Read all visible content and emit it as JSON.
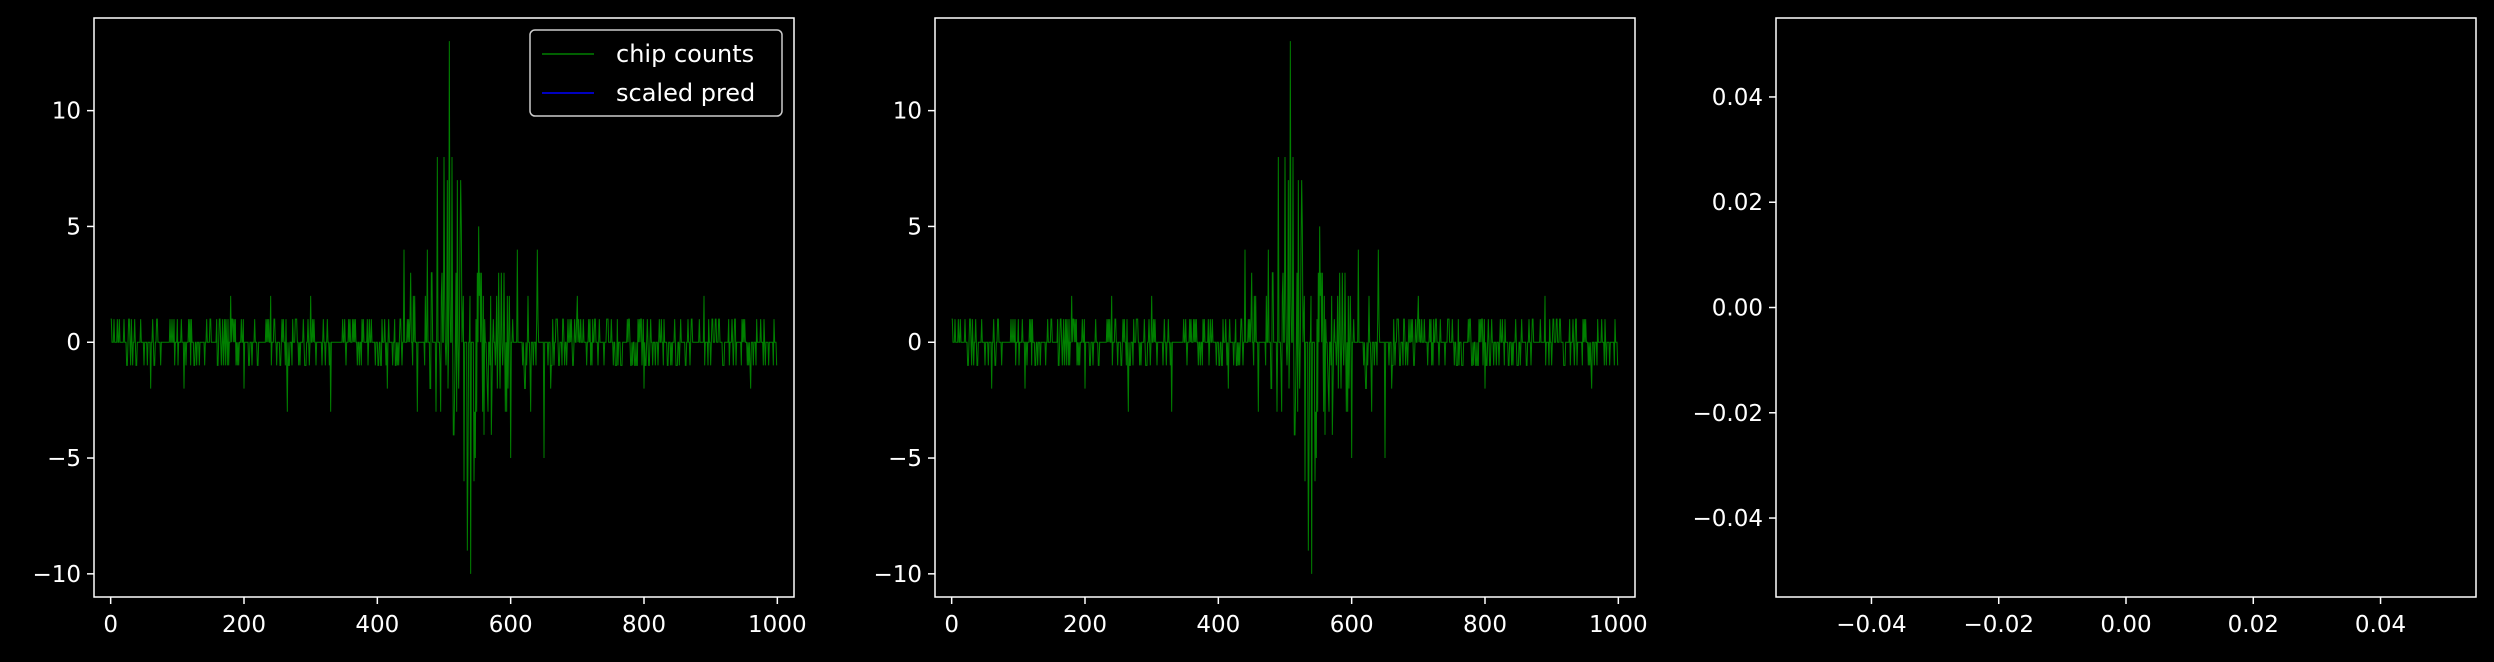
{
  "colors": {
    "background": "#000000",
    "axes_edge": "#ffffff",
    "text": "#ffffff",
    "series_chip_counts": "#008000",
    "series_scaled_pred": "#0000ff",
    "legend_face": "#000000",
    "legend_edge": "#cccccc"
  },
  "chart_data": [
    {
      "type": "line",
      "title": "",
      "xlabel": "",
      "ylabel": "",
      "xlim": [
        -25,
        1025
      ],
      "ylim": [
        -11,
        14
      ],
      "xticks": [
        0,
        200,
        400,
        600,
        800,
        1000
      ],
      "xtick_labels": [
        "0",
        "200",
        "400",
        "600",
        "800",
        "1000"
      ],
      "yticks": [
        -10,
        -5,
        0,
        5,
        10
      ],
      "ytick_labels": [
        "−10",
        "−5",
        "0",
        "5",
        "10"
      ],
      "grid": false,
      "legend": {
        "placement": "upper right",
        "entries": [
          {
            "label": "chip counts",
            "color": "#008000"
          },
          {
            "label": "scaled pred",
            "color": "#0000ff"
          }
        ]
      },
      "series": [
        {
          "name": "chip counts",
          "color": "#008000",
          "x_range": [
            0,
            999
          ],
          "baseline": 0,
          "description_values": {
            "outer_amplitude": 1,
            "central_region": [
              420,
              660
            ],
            "peak_max": 13,
            "peak_max_x": 508,
            "peak_min": -10,
            "peak_min_x": 540,
            "spikes": [
              [
                20,
                1
              ],
              [
                25,
                -1
              ],
              [
                60,
                -2
              ],
              [
                110,
                -2
              ],
              [
                180,
                2
              ],
              [
                200,
                -2
              ],
              [
                240,
                2
              ],
              [
                265,
                -3
              ],
              [
                300,
                2
              ],
              [
                330,
                -3
              ],
              [
                415,
                -2
              ],
              [
                440,
                4
              ],
              [
                450,
                3
              ],
              [
                460,
                -3
              ],
              [
                475,
                4
              ],
              [
                480,
                -2
              ],
              [
                490,
                8
              ],
              [
                495,
                -3
              ],
              [
                500,
                8
              ],
              [
                505,
                7
              ],
              [
                508,
                13
              ],
              [
                512,
                8
              ],
              [
                515,
                -4
              ],
              [
                520,
                7
              ],
              [
                525,
                7
              ],
              [
                530,
                -6
              ],
              [
                535,
                -9
              ],
              [
                540,
                -10
              ],
              [
                545,
                -6
              ],
              [
                550,
                3
              ],
              [
                560,
                -4
              ],
              [
                570,
                2
              ],
              [
                580,
                -2
              ],
              [
                590,
                3
              ],
              [
                600,
                -5
              ],
              [
                610,
                4
              ],
              [
                620,
                -1
              ],
              [
                630,
                -3
              ],
              [
                640,
                4
              ],
              [
                650,
                -5
              ],
              [
                660,
                -2
              ],
              [
                700,
                2
              ],
              [
                720,
                -1
              ],
              [
                760,
                1
              ],
              [
                800,
                -2
              ],
              [
                850,
                -1
              ],
              [
                890,
                2
              ],
              [
                920,
                -1
              ],
              [
                960,
                -2
              ],
              [
                980,
                1
              ],
              [
                999,
                -1
              ]
            ]
          }
        },
        {
          "name": "scaled pred",
          "color": "#0000ff",
          "x": [],
          "y": []
        }
      ]
    },
    {
      "type": "line",
      "title": "",
      "xlabel": "",
      "ylabel": "",
      "xlim": [
        -25,
        1025
      ],
      "ylim": [
        -11,
        14
      ],
      "xticks": [
        0,
        200,
        400,
        600,
        800,
        1000
      ],
      "xtick_labels": [
        "0",
        "200",
        "400",
        "600",
        "800",
        "1000"
      ],
      "yticks": [
        -10,
        -5,
        0,
        5,
        10
      ],
      "ytick_labels": [
        "−10",
        "−5",
        "0",
        "5",
        "10"
      ],
      "grid": false,
      "legend": null,
      "series": [
        {
          "color": "#008000",
          "x_range": [
            0,
            999
          ],
          "baseline": 0,
          "description_values": {
            "outer_amplitude": 1,
            "central_region": [
              420,
              660
            ],
            "peak_max": 13,
            "peak_max_x": 508,
            "peak_min": -10,
            "peak_min_x": 540,
            "spikes": [
              [
                20,
                1
              ],
              [
                25,
                -1
              ],
              [
                60,
                -2
              ],
              [
                110,
                -2
              ],
              [
                180,
                2
              ],
              [
                200,
                -2
              ],
              [
                240,
                2
              ],
              [
                265,
                -3
              ],
              [
                300,
                2
              ],
              [
                330,
                -3
              ],
              [
                415,
                -2
              ],
              [
                440,
                4
              ],
              [
                450,
                3
              ],
              [
                460,
                -3
              ],
              [
                475,
                4
              ],
              [
                480,
                -2
              ],
              [
                490,
                8
              ],
              [
                495,
                -3
              ],
              [
                500,
                8
              ],
              [
                505,
                7
              ],
              [
                508,
                13
              ],
              [
                512,
                8
              ],
              [
                515,
                -4
              ],
              [
                520,
                7
              ],
              [
                525,
                7
              ],
              [
                530,
                -6
              ],
              [
                535,
                -9
              ],
              [
                540,
                -10
              ],
              [
                545,
                -6
              ],
              [
                550,
                3
              ],
              [
                560,
                -4
              ],
              [
                570,
                2
              ],
              [
                580,
                -2
              ],
              [
                590,
                3
              ],
              [
                600,
                -5
              ],
              [
                610,
                4
              ],
              [
                620,
                -1
              ],
              [
                630,
                -3
              ],
              [
                640,
                4
              ],
              [
                650,
                -5
              ],
              [
                660,
                -2
              ],
              [
                700,
                2
              ],
              [
                720,
                -1
              ],
              [
                760,
                1
              ],
              [
                800,
                -2
              ],
              [
                850,
                -1
              ],
              [
                890,
                2
              ],
              [
                920,
                -1
              ],
              [
                960,
                -2
              ],
              [
                980,
                1
              ],
              [
                999,
                -1
              ]
            ]
          }
        }
      ]
    },
    {
      "type": "line",
      "title": "",
      "xlabel": "",
      "ylabel": "",
      "xlim": [
        -0.055,
        0.055
      ],
      "ylim": [
        -0.055,
        0.055
      ],
      "xticks": [
        -0.04,
        -0.02,
        0.0,
        0.02,
        0.04
      ],
      "xtick_labels": [
        "−0.04",
        "−0.02",
        "0.00",
        "0.02",
        "0.04"
      ],
      "yticks": [
        -0.04,
        -0.02,
        0.0,
        0.02,
        0.04
      ],
      "ytick_labels": [
        "−0.04",
        "−0.02",
        "0.00",
        "0.02",
        "0.04"
      ],
      "grid": false,
      "legend": null,
      "series": []
    }
  ]
}
